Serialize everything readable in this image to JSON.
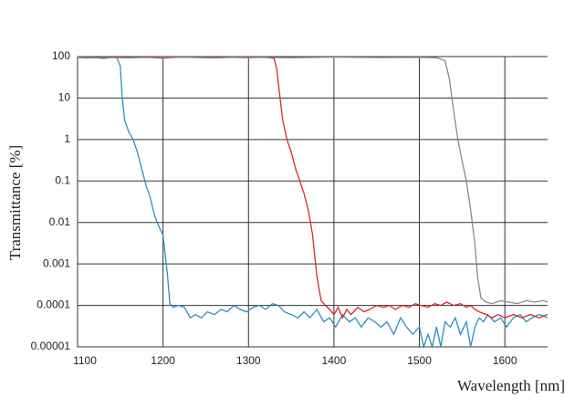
{
  "chart_data": {
    "type": "line",
    "y_label": "Transmittance [%]",
    "x_label": "Wavelength [nm]",
    "xlim": [
      1100,
      1650
    ],
    "xticks": [
      1100,
      1200,
      1300,
      1400,
      1500,
      1600
    ],
    "ylim": [
      1e-05,
      100
    ],
    "yticks": [
      100,
      10,
      1,
      0.1,
      0.01,
      0.001,
      0.0001,
      1e-05
    ],
    "yscale": "log",
    "grid": true,
    "series": [
      {
        "color": "#2b8fc0",
        "x": [
          1100,
          1110,
          1120,
          1130,
          1140,
          1146,
          1150,
          1152,
          1155,
          1160,
          1165,
          1170,
          1175,
          1180,
          1185,
          1190,
          1195,
          1200,
          1205,
          1208,
          1212,
          1218,
          1225,
          1232,
          1238,
          1245,
          1252,
          1260,
          1268,
          1275,
          1283,
          1290,
          1298,
          1305,
          1313,
          1320,
          1328,
          1335,
          1342,
          1350,
          1358,
          1365,
          1372,
          1380,
          1388,
          1395,
          1402,
          1410,
          1418,
          1425,
          1432,
          1440,
          1448,
          1455,
          1462,
          1470,
          1478,
          1485,
          1492,
          1500,
          1505,
          1510,
          1515,
          1520,
          1525,
          1530,
          1536,
          1542,
          1548,
          1555,
          1560,
          1565,
          1570,
          1575,
          1580,
          1588,
          1595,
          1602,
          1610,
          1618,
          1625,
          1632,
          1640,
          1650
        ],
        "values": [
          95,
          92,
          97,
          90,
          96,
          93,
          60,
          12,
          3,
          1.5,
          1,
          0.5,
          0.2,
          0.08,
          0.04,
          0.015,
          0.008,
          0.005,
          0.0006,
          0.00011,
          9e-05,
          0.0001,
          9e-05,
          5e-05,
          6e-05,
          5e-05,
          7e-05,
          6e-05,
          8e-05,
          7e-05,
          0.0001,
          8e-05,
          7e-05,
          9e-05,
          0.0001,
          8e-05,
          0.00011,
          0.0001,
          7e-05,
          6e-05,
          5e-05,
          7e-05,
          5e-05,
          8e-05,
          4e-05,
          5e-05,
          3e-05,
          6e-05,
          4e-05,
          5e-05,
          3e-05,
          5e-05,
          4e-05,
          3e-05,
          4e-05,
          2e-05,
          5e-05,
          3e-05,
          2e-05,
          3e-05,
          1e-05,
          2e-05,
          1e-05,
          3e-05,
          1e-05,
          4e-05,
          3e-05,
          5e-05,
          2e-05,
          4e-05,
          1e-05,
          3e-05,
          5e-05,
          4e-05,
          6e-05,
          4e-05,
          5e-05,
          3e-05,
          5e-05,
          6e-05,
          4e-05,
          5e-05,
          6e-05,
          5e-05
        ]
      },
      {
        "color": "#d9262c",
        "x": [
          1100,
          1120,
          1140,
          1160,
          1180,
          1200,
          1220,
          1240,
          1260,
          1280,
          1300,
          1320,
          1330,
          1333,
          1337,
          1340,
          1345,
          1350,
          1355,
          1360,
          1365,
          1370,
          1375,
          1380,
          1385,
          1390,
          1395,
          1400,
          1405,
          1410,
          1415,
          1420,
          1428,
          1435,
          1442,
          1450,
          1458,
          1465,
          1472,
          1480,
          1488,
          1495,
          1502,
          1510,
          1518,
          1525,
          1532,
          1540,
          1548,
          1555,
          1560,
          1565,
          1570,
          1578,
          1585,
          1592,
          1600,
          1610,
          1620,
          1630,
          1640,
          1650
        ],
        "values": [
          96,
          93,
          97,
          94,
          96,
          92,
          97,
          95,
          93,
          96,
          94,
          97,
          90,
          50,
          10,
          3,
          1,
          0.5,
          0.2,
          0.1,
          0.05,
          0.02,
          0.005,
          0.0005,
          0.00013,
          0.0001,
          8e-05,
          6e-05,
          9e-05,
          5e-05,
          8e-05,
          6e-05,
          9e-05,
          7e-05,
          8e-05,
          0.0001,
          9e-05,
          0.0001,
          8e-05,
          0.0001,
          9e-05,
          0.00011,
          0.0001,
          9e-05,
          0.00011,
          0.0001,
          0.00012,
          0.0001,
          0.00011,
          9e-05,
          0.0001,
          8e-05,
          7e-05,
          6e-05,
          5e-05,
          6e-05,
          5e-05,
          6e-05,
          5e-05,
          6e-05,
          5e-05,
          6e-05
        ]
      },
      {
        "color": "#8a8a8a",
        "x": [
          1100,
          1150,
          1200,
          1250,
          1300,
          1350,
          1400,
          1450,
          1500,
          1520,
          1530,
          1535,
          1540,
          1545,
          1550,
          1555,
          1560,
          1565,
          1568,
          1572,
          1578,
          1585,
          1595,
          1605,
          1615,
          1625,
          1635,
          1645,
          1650
        ],
        "values": [
          96,
          94,
          97,
          95,
          96,
          94,
          97,
          95,
          96,
          94,
          80,
          30,
          5,
          1,
          0.3,
          0.1,
          0.02,
          0.003,
          0.0005,
          0.00015,
          0.00012,
          0.00011,
          0.00013,
          0.00012,
          0.00011,
          0.00013,
          0.00012,
          0.00013,
          0.00012
        ]
      }
    ]
  }
}
